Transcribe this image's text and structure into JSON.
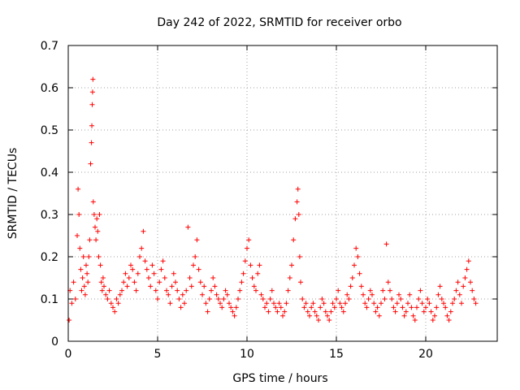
{
  "chart_data": {
    "type": "scatter",
    "title": "Day 242 of 2022, SRMTID for receiver orbo",
    "xlabel": "GPS time / hours",
    "ylabel": "SRMTID / TECUs",
    "xlim": [
      0,
      24
    ],
    "ylim": [
      0,
      0.7
    ],
    "xticks": [
      0,
      5,
      10,
      15,
      20
    ],
    "yticks": [
      0,
      0.1,
      0.2,
      0.3,
      0.4,
      0.5,
      0.6,
      0.7
    ],
    "xtick_labels": [
      "0",
      "5",
      "10",
      "15",
      "20"
    ],
    "ytick_labels": [
      "0",
      "0.1",
      "0.2",
      "0.3",
      "0.4",
      "0.5",
      "0.6",
      "0.7"
    ],
    "grid": true,
    "marker": "+",
    "color": "#ff0000",
    "series": [
      {
        "name": "SRMTID",
        "x": [
          0.05,
          0.1,
          0.2,
          0.3,
          0.4,
          0.5,
          0.55,
          0.6,
          0.65,
          0.7,
          0.75,
          0.8,
          0.85,
          0.9,
          0.95,
          1.0,
          1.05,
          1.1,
          1.15,
          1.2,
          1.25,
          1.3,
          1.32,
          1.34,
          1.36,
          1.38,
          1.4,
          1.45,
          1.5,
          1.55,
          1.6,
          1.65,
          1.7,
          1.75,
          1.8,
          1.85,
          1.9,
          1.95,
          2.0,
          2.1,
          2.2,
          2.3,
          2.4,
          2.5,
          2.6,
          2.7,
          2.8,
          2.9,
          3.0,
          3.1,
          3.2,
          3.3,
          3.4,
          3.5,
          3.6,
          3.7,
          3.8,
          3.9,
          4.0,
          4.1,
          4.2,
          4.3,
          4.4,
          4.5,
          4.6,
          4.7,
          4.8,
          4.9,
          5.0,
          5.1,
          5.2,
          5.3,
          5.4,
          5.5,
          5.6,
          5.7,
          5.8,
          5.9,
          6.0,
          6.1,
          6.2,
          6.3,
          6.4,
          6.5,
          6.6,
          6.7,
          6.8,
          6.9,
          7.0,
          7.1,
          7.2,
          7.3,
          7.4,
          7.5,
          7.6,
          7.7,
          7.8,
          7.9,
          8.0,
          8.1,
          8.2,
          8.3,
          8.4,
          8.5,
          8.6,
          8.7,
          8.8,
          8.9,
          9.0,
          9.1,
          9.2,
          9.3,
          9.4,
          9.5,
          9.6,
          9.7,
          9.8,
          9.9,
          10.0,
          10.1,
          10.2,
          10.3,
          10.4,
          10.5,
          10.6,
          10.7,
          10.8,
          10.9,
          11.0,
          11.1,
          11.2,
          11.3,
          11.4,
          11.5,
          11.6,
          11.7,
          11.8,
          11.9,
          12.0,
          12.1,
          12.2,
          12.3,
          12.4,
          12.5,
          12.6,
          12.7,
          12.8,
          12.85,
          12.9,
          12.95,
          13.0,
          13.1,
          13.2,
          13.3,
          13.4,
          13.5,
          13.6,
          13.7,
          13.8,
          13.9,
          14.0,
          14.1,
          14.2,
          14.3,
          14.4,
          14.5,
          14.6,
          14.7,
          14.8,
          14.9,
          15.0,
          15.1,
          15.2,
          15.3,
          15.4,
          15.5,
          15.6,
          15.7,
          15.8,
          15.9,
          16.0,
          16.1,
          16.2,
          16.3,
          16.4,
          16.5,
          16.6,
          16.7,
          16.8,
          16.9,
          17.0,
          17.1,
          17.2,
          17.3,
          17.4,
          17.5,
          17.6,
          17.7,
          17.8,
          17.9,
          18.0,
          18.1,
          18.2,
          18.3,
          18.4,
          18.5,
          18.6,
          18.7,
          18.8,
          18.9,
          19.0,
          19.1,
          19.2,
          19.3,
          19.4,
          19.5,
          19.6,
          19.7,
          19.8,
          19.9,
          20.0,
          20.1,
          20.2,
          20.3,
          20.4,
          20.5,
          20.6,
          20.7,
          20.8,
          20.9,
          21.0,
          21.1,
          21.2,
          21.3,
          21.4,
          21.5,
          21.6,
          21.7,
          21.8,
          21.9,
          22.0,
          22.1,
          22.2,
          22.3,
          22.4,
          22.5,
          22.6,
          22.7,
          22.8
        ],
        "y": [
          0.05,
          0.12,
          0.09,
          0.14,
          0.1,
          0.25,
          0.36,
          0.3,
          0.22,
          0.17,
          0.12,
          0.15,
          0.2,
          0.13,
          0.11,
          0.18,
          0.16,
          0.14,
          0.2,
          0.24,
          0.42,
          0.47,
          0.51,
          0.56,
          0.59,
          0.62,
          0.33,
          0.3,
          0.27,
          0.24,
          0.29,
          0.26,
          0.2,
          0.3,
          0.18,
          0.14,
          0.12,
          0.15,
          0.13,
          0.11,
          0.1,
          0.12,
          0.09,
          0.08,
          0.07,
          0.1,
          0.09,
          0.11,
          0.12,
          0.14,
          0.16,
          0.13,
          0.15,
          0.18,
          0.17,
          0.14,
          0.12,
          0.16,
          0.2,
          0.22,
          0.26,
          0.19,
          0.17,
          0.15,
          0.13,
          0.18,
          0.16,
          0.12,
          0.1,
          0.14,
          0.17,
          0.19,
          0.15,
          0.12,
          0.11,
          0.09,
          0.13,
          0.16,
          0.14,
          0.12,
          0.1,
          0.08,
          0.11,
          0.09,
          0.12,
          0.27,
          0.15,
          0.13,
          0.18,
          0.2,
          0.24,
          0.17,
          0.14,
          0.11,
          0.13,
          0.09,
          0.07,
          0.1,
          0.12,
          0.15,
          0.13,
          0.11,
          0.1,
          0.09,
          0.08,
          0.1,
          0.12,
          0.11,
          0.09,
          0.08,
          0.07,
          0.06,
          0.08,
          0.1,
          0.12,
          0.14,
          0.16,
          0.19,
          0.22,
          0.24,
          0.18,
          0.15,
          0.13,
          0.12,
          0.16,
          0.18,
          0.11,
          0.1,
          0.08,
          0.09,
          0.07,
          0.1,
          0.12,
          0.09,
          0.08,
          0.07,
          0.09,
          0.08,
          0.06,
          0.07,
          0.09,
          0.12,
          0.15,
          0.18,
          0.24,
          0.29,
          0.33,
          0.36,
          0.3,
          0.2,
          0.14,
          0.1,
          0.08,
          0.09,
          0.07,
          0.06,
          0.08,
          0.09,
          0.07,
          0.06,
          0.05,
          0.08,
          0.1,
          0.09,
          0.07,
          0.06,
          0.05,
          0.07,
          0.09,
          0.08,
          0.1,
          0.12,
          0.09,
          0.08,
          0.07,
          0.09,
          0.11,
          0.1,
          0.13,
          0.15,
          0.18,
          0.22,
          0.2,
          0.16,
          0.13,
          0.11,
          0.09,
          0.08,
          0.1,
          0.12,
          0.11,
          0.09,
          0.07,
          0.08,
          0.06,
          0.09,
          0.12,
          0.1,
          0.23,
          0.14,
          0.12,
          0.1,
          0.08,
          0.07,
          0.09,
          0.11,
          0.1,
          0.08,
          0.06,
          0.07,
          0.09,
          0.11,
          0.08,
          0.06,
          0.05,
          0.08,
          0.1,
          0.12,
          0.09,
          0.07,
          0.08,
          0.1,
          0.09,
          0.07,
          0.05,
          0.06,
          0.08,
          0.11,
          0.13,
          0.1,
          0.09,
          0.08,
          0.06,
          0.05,
          0.07,
          0.09,
          0.1,
          0.12,
          0.14,
          0.11,
          0.09,
          0.13,
          0.15,
          0.17,
          0.19,
          0.14,
          0.12,
          0.1,
          0.09
        ]
      }
    ]
  }
}
